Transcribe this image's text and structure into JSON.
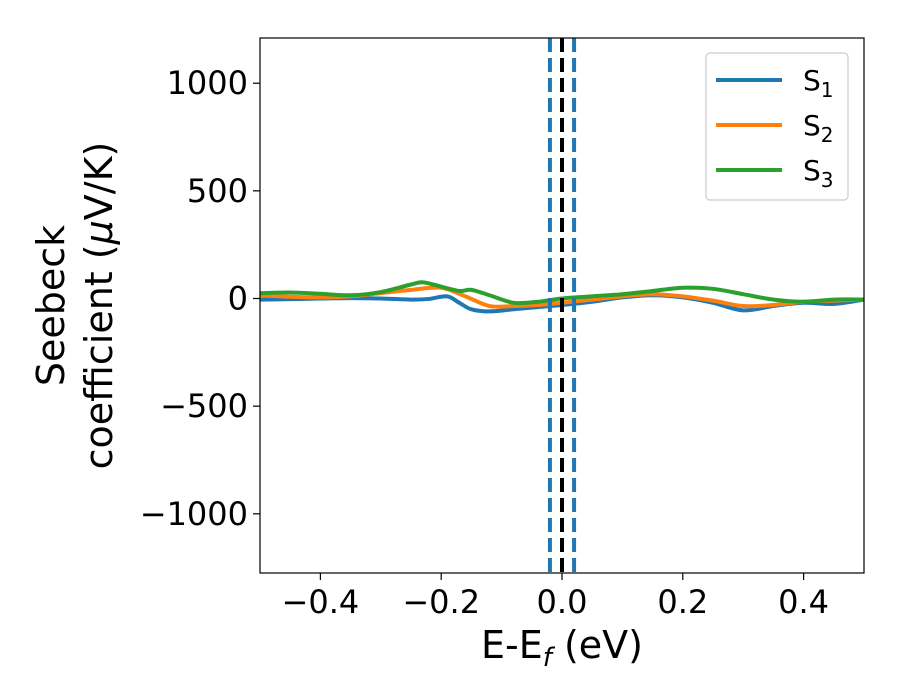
{
  "chart_data": {
    "type": "line",
    "xlabel": "E-E",
    "xlabel_sub": "f",
    "xlabel_unit": " (eV)",
    "ylabel_line1": "Seebeck",
    "ylabel_line2": "coefficient  (",
    "ylabel_mu": "μ",
    "ylabel_line2_end": "V/K)",
    "xlim": [
      -0.5,
      0.5
    ],
    "ylim": [
      -1275,
      1210
    ],
    "xticks": [
      -0.4,
      -0.2,
      0.0,
      0.2,
      0.4
    ],
    "xtick_labels": [
      "−0.4",
      "−0.2",
      "0.0",
      "0.2",
      "0.4"
    ],
    "yticks": [
      -1000,
      -500,
      0,
      500,
      1000
    ],
    "ytick_labels": [
      "−1000",
      "−500",
      "0",
      "500",
      "1000"
    ],
    "grid": false,
    "legend_position": "top-right",
    "vertical_lines": [
      {
        "x": -0.02,
        "style": "dashed",
        "color": "#1f77b4"
      },
      {
        "x": 0.02,
        "style": "dashed",
        "color": "#1f77b4"
      },
      {
        "x": 0.0,
        "style": "dashed",
        "color": "#000000"
      }
    ],
    "series": [
      {
        "name": "S",
        "sub": "1",
        "color": "#1f77b4",
        "x": [
          -0.5,
          -0.45,
          -0.4,
          -0.35,
          -0.3,
          -0.25,
          -0.22,
          -0.19,
          -0.17,
          -0.15,
          -0.12,
          -0.08,
          -0.04,
          0.0,
          0.05,
          0.1,
          0.15,
          0.2,
          0.25,
          0.3,
          0.35,
          0.4,
          0.45,
          0.5
        ],
        "y": [
          -5,
          -3,
          0,
          2,
          0,
          -5,
          -2,
          10,
          -20,
          -50,
          -60,
          -50,
          -40,
          -30,
          -15,
          5,
          15,
          5,
          -20,
          -55,
          -35,
          -20,
          -25,
          -5
        ]
      },
      {
        "name": "S",
        "sub": "2",
        "color": "#ff7f0e",
        "x": [
          -0.5,
          -0.45,
          -0.4,
          -0.35,
          -0.3,
          -0.25,
          -0.2,
          -0.16,
          -0.12,
          -0.08,
          -0.04,
          0.0,
          0.05,
          0.1,
          0.15,
          0.2,
          0.25,
          0.3,
          0.35,
          0.4,
          0.45,
          0.5
        ],
        "y": [
          15,
          8,
          5,
          10,
          25,
          40,
          50,
          10,
          -35,
          -35,
          -30,
          -20,
          -5,
          10,
          20,
          10,
          -10,
          -35,
          -30,
          -15,
          -10,
          -5
        ]
      },
      {
        "name": "S",
        "sub": "3",
        "color": "#2ca02c",
        "x": [
          -0.5,
          -0.45,
          -0.4,
          -0.35,
          -0.3,
          -0.25,
          -0.23,
          -0.2,
          -0.17,
          -0.15,
          -0.12,
          -0.08,
          -0.04,
          0.0,
          0.05,
          0.1,
          0.15,
          0.2,
          0.25,
          0.3,
          0.35,
          0.4,
          0.45,
          0.5
        ],
        "y": [
          25,
          28,
          22,
          15,
          30,
          65,
          75,
          55,
          35,
          40,
          15,
          -20,
          -15,
          0,
          10,
          20,
          35,
          50,
          45,
          20,
          -5,
          -15,
          -5,
          -5
        ]
      }
    ]
  }
}
